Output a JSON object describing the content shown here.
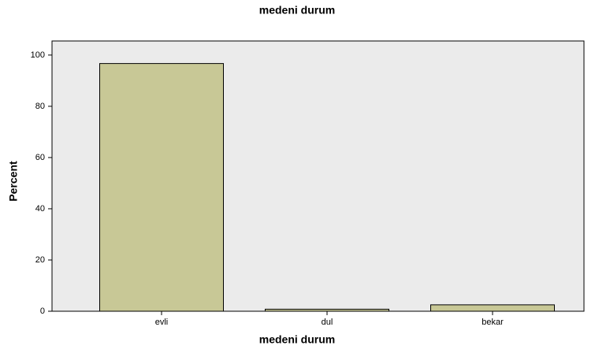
{
  "chart_data": {
    "type": "bar",
    "title": "medeni durum",
    "x_label": "medeni durum",
    "y_label": "Percent",
    "categories": [
      "evli",
      "dul",
      "bekar"
    ],
    "values": [
      96.7,
      0.8,
      2.5
    ],
    "color": "#c8c896",
    "ylim": [
      0,
      105.5
    ],
    "yticks": [
      0,
      20,
      40,
      60,
      80,
      100
    ]
  }
}
